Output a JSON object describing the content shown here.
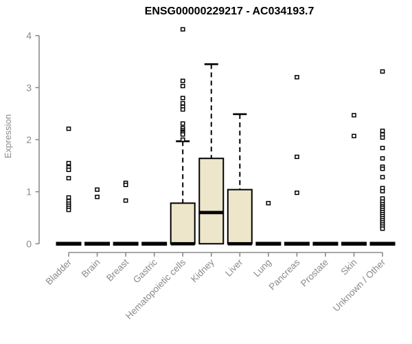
{
  "chart_data": {
    "type": "boxplot",
    "title": "ENSG00000229217 - AC034193.7",
    "ylabel": "Expression",
    "xlabel": "",
    "ylim": [
      0,
      4
    ],
    "yticks": [
      0,
      1,
      2,
      3,
      4
    ],
    "grid": false,
    "legend_position": "none",
    "colors": {
      "box_fill": "#EDE6CB",
      "box_border": "#000000",
      "median": "#000000",
      "whisker": "#000000",
      "outlier": "#000000",
      "axis": "#8a8a8a",
      "tick_label": "#8a8a8a",
      "title": "#000000",
      "background": "#ffffff"
    },
    "categories": [
      "Bladder",
      "Brain",
      "Breast",
      "Gastric",
      "Hematopoietic cells",
      "Kidney",
      "Liver",
      "Lung",
      "Pancreas",
      "Prostate",
      "Skin",
      "Unknown / Other"
    ],
    "series": [
      {
        "name": "Bladder",
        "q1": 0,
        "median": 0,
        "q3": 0,
        "whisker_low": 0,
        "whisker_high": 0,
        "outliers": [
          2.21,
          1.55,
          1.47,
          1.42,
          1.26,
          0.89,
          0.82,
          0.77,
          0.73,
          0.69,
          0.65
        ]
      },
      {
        "name": "Brain",
        "q1": 0,
        "median": 0,
        "q3": 0,
        "whisker_low": 0,
        "whisker_high": 0,
        "outliers": [
          1.04,
          0.9
        ]
      },
      {
        "name": "Breast",
        "q1": 0,
        "median": 0,
        "q3": 0,
        "whisker_low": 0,
        "whisker_high": 0,
        "outliers": [
          1.17,
          1.13,
          0.83
        ]
      },
      {
        "name": "Gastric",
        "q1": 0,
        "median": 0,
        "q3": 0,
        "whisker_low": 0,
        "whisker_high": 0,
        "outliers": []
      },
      {
        "name": "Hematopoietic cells",
        "q1": 0,
        "median": 0,
        "q3": 0.78,
        "whisker_low": 0,
        "whisker_high": 1.97,
        "outliers": [
          4.12,
          3.13,
          3.03,
          2.8,
          2.7,
          2.63,
          2.58,
          2.31,
          2.22,
          2.18,
          2.15,
          2.13,
          2.1,
          2.0
        ]
      },
      {
        "name": "Kidney",
        "q1": 0,
        "median": 0.6,
        "q3": 1.64,
        "whisker_low": 0,
        "whisker_high": 3.45,
        "outliers": []
      },
      {
        "name": "Liver",
        "q1": 0,
        "median": 0,
        "q3": 1.04,
        "whisker_low": 0,
        "whisker_high": 2.49,
        "outliers": []
      },
      {
        "name": "Lung",
        "q1": 0,
        "median": 0,
        "q3": 0,
        "whisker_low": 0,
        "whisker_high": 0,
        "outliers": [
          0.78
        ]
      },
      {
        "name": "Pancreas",
        "q1": 0,
        "median": 0,
        "q3": 0,
        "whisker_low": 0,
        "whisker_high": 0,
        "outliers": [
          3.2,
          1.67,
          0.98
        ]
      },
      {
        "name": "Prostate",
        "q1": 0,
        "median": 0,
        "q3": 0,
        "whisker_low": 0,
        "whisker_high": 0,
        "outliers": []
      },
      {
        "name": "Skin",
        "q1": 0,
        "median": 0,
        "q3": 0,
        "whisker_low": 0,
        "whisker_high": 0,
        "outliers": [
          2.47,
          2.07
        ]
      },
      {
        "name": "Unknown / Other",
        "q1": 0,
        "median": 0,
        "q3": 0,
        "whisker_low": 0,
        "whisker_high": 0,
        "outliers": [
          3.31,
          2.17,
          2.1,
          2.04,
          1.84,
          1.64,
          1.48,
          1.44,
          1.28,
          1.07,
          1.01,
          0.87,
          0.81,
          0.76,
          0.72,
          0.69,
          0.65,
          0.61,
          0.57,
          0.53,
          0.49,
          0.45,
          0.41,
          0.37,
          0.33,
          0.29
        ]
      }
    ]
  }
}
